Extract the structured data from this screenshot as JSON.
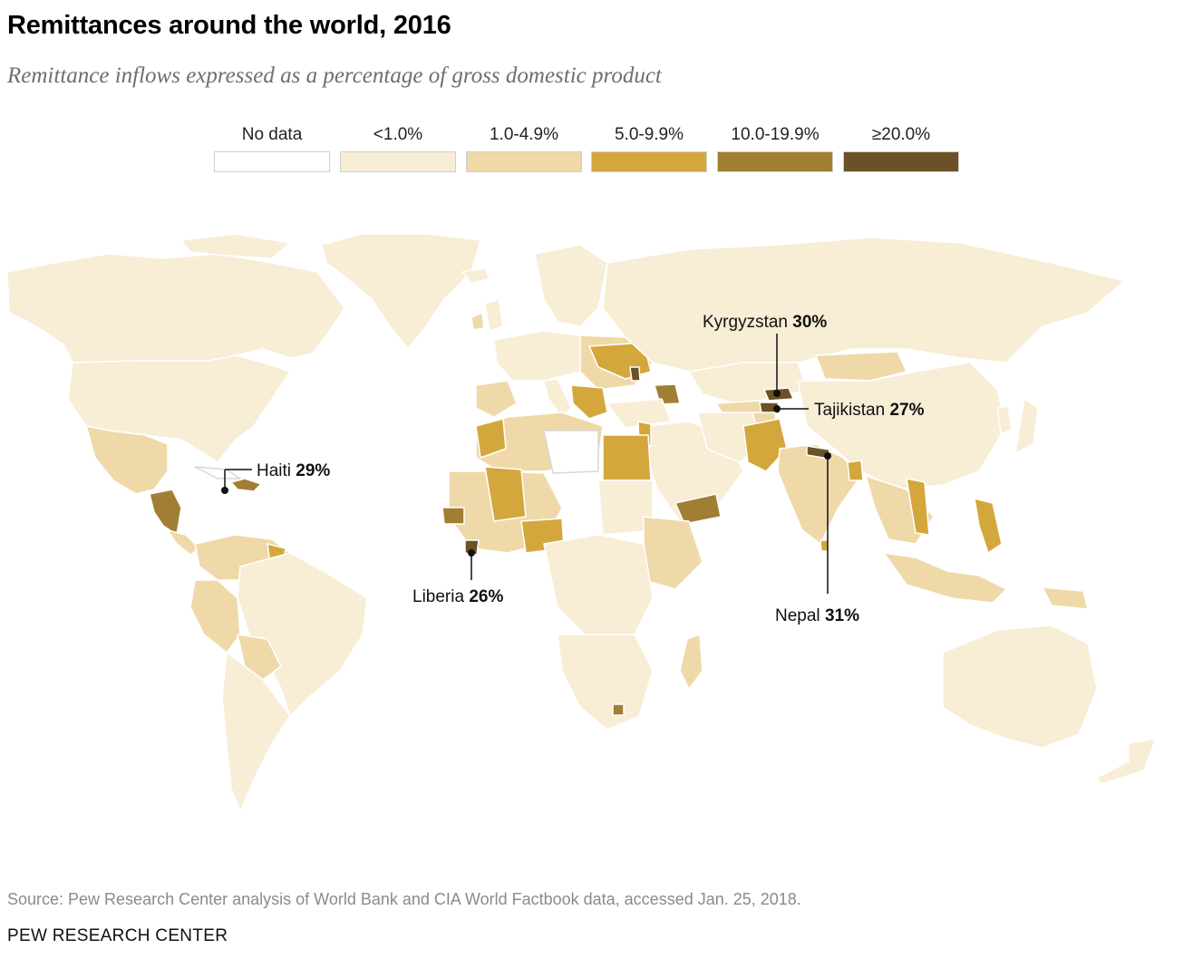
{
  "title": "Remittances around the world, 2016",
  "subtitle": "Remittance inflows expressed as a percentage of gross domestic product",
  "legend": [
    {
      "label": "No data",
      "color": "#ffffff"
    },
    {
      "label": "<1.0%",
      "color": "#f8edd5"
    },
    {
      "label": "1.0-4.9%",
      "color": "#efd9a8"
    },
    {
      "label": "5.0-9.9%",
      "color": "#d4a73c"
    },
    {
      "label": "10.0-19.9%",
      "color": "#a07e33"
    },
    {
      "label": "≥20.0%",
      "color": "#6b5125"
    }
  ],
  "callouts": {
    "haiti": {
      "name": "Haiti",
      "value": "29%"
    },
    "liberia": {
      "name": "Liberia",
      "value": "26%"
    },
    "kyrgyzstan": {
      "name": "Kyrgyzstan",
      "value": "30%"
    },
    "tajikistan": {
      "name": "Tajikistan",
      "value": "27%"
    },
    "nepal": {
      "name": "Nepal",
      "value": "31%"
    }
  },
  "source": "Source: Pew Research Center analysis of World Bank and CIA World Factbook data, accessed Jan. 25, 2018.",
  "org": "PEW RESEARCH CENTER"
}
